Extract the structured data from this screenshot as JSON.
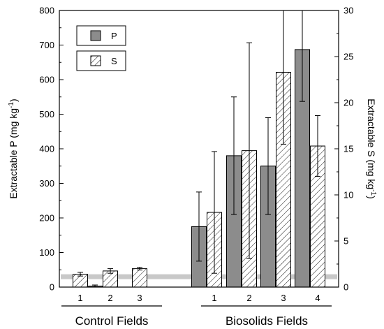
{
  "chart_data": {
    "type": "bar",
    "xlabel": "",
    "ylabel": "Extractable P (mg kg-1)",
    "y2label": "Extractable S (mg kg-1)",
    "ylabel_parts": {
      "main": "Extractable P (mg kg",
      "sup": "-1",
      "tail": ")"
    },
    "y2label_parts": {
      "main": "Extractable S (mg kg",
      "sup": "-1",
      "tail": ")"
    },
    "ylim": [
      0,
      800
    ],
    "y2lim": [
      0,
      30
    ],
    "yticks": [
      "0",
      "100",
      "200",
      "300",
      "400",
      "500",
      "600",
      "700",
      "800"
    ],
    "y2ticks": [
      "0",
      "5",
      "10",
      "15",
      "20",
      "25",
      "30"
    ],
    "groups": [
      {
        "name": "Control Fields",
        "categories": [
          {
            "label": "1",
            "P": null,
            "P_err": null,
            "S": 1.4,
            "S_err": 0.2
          },
          {
            "label": "2",
            "P": 3,
            "P_err": 3,
            "S": 1.75,
            "S_err": 0.25
          },
          {
            "label": "3",
            "P": null,
            "P_err": null,
            "S": 2.0,
            "S_err": 0.15
          }
        ]
      },
      {
        "name": "Biosolids Fields",
        "categories": [
          {
            "label": "1",
            "P": 175,
            "P_err": 100,
            "S": 8.1,
            "S_err": 6.6
          },
          {
            "label": "2",
            "P": 380,
            "P_err": 170,
            "S": 14.8,
            "S_err": 11.7
          },
          {
            "label": "3",
            "P": 350,
            "P_err": 140,
            "S": 23.3,
            "S_err": 7.8
          },
          {
            "label": "4",
            "P": 687,
            "P_err": 150,
            "S": 15.3,
            "S_err": 3.3
          }
        ]
      }
    ],
    "reference_band_P": 30,
    "legend": {
      "position": "top-left",
      "entries": [
        "P",
        "S"
      ]
    },
    "series_colors": {
      "P": "#8c8c8c",
      "S": "#ffffff",
      "reference_band": "#c8c8c8"
    },
    "grid": false
  }
}
